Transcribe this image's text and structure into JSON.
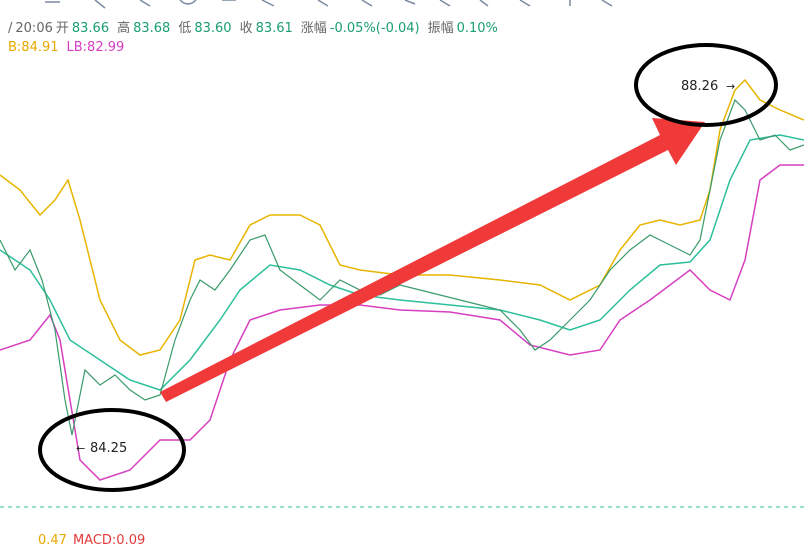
{
  "header": {
    "time": "20:06",
    "items": [
      {
        "label": "开",
        "value": "83.66"
      },
      {
        "label": "高",
        "value": "83.68"
      },
      {
        "label": "低",
        "value": "83.60"
      },
      {
        "label": "收",
        "value": "83.61"
      },
      {
        "label": "涨幅",
        "value": "-0.05%(-0.04)"
      },
      {
        "label": "振幅",
        "value": "0.10%"
      }
    ]
  },
  "bands": {
    "upper": "B:84.91",
    "lower": "LB:82.99"
  },
  "annotations": {
    "high": "88.26",
    "low": "84.25"
  },
  "macd": {
    "prev": "0.47",
    "macd": "MACD:0.09"
  }
}
